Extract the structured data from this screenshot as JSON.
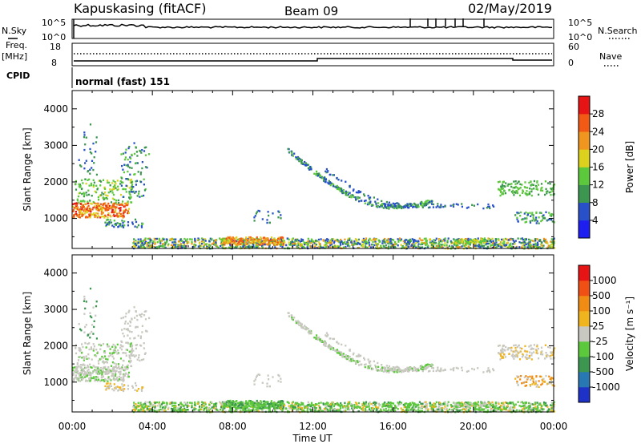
{
  "header": {
    "station": "Kapuskasing (fitACF)",
    "beam": "Beam 09",
    "date": "02/May/2019"
  },
  "panels": {
    "nsky_label": "N.Sky",
    "nsearch_label": "N.Search",
    "noise_ticks": [
      "10^5",
      "10^0"
    ],
    "freq_label": "Freq.",
    "freq_unit": "[MHz]",
    "freq_ticks": [
      "18",
      "8"
    ],
    "nave_label": "Nave",
    "nave_ticks": [
      "60",
      "0"
    ],
    "cpid_label": "CPID",
    "cpid_value": "normal (fast) 151"
  },
  "chart_data": [
    {
      "type": "heatmap",
      "title": "",
      "xlabel": "",
      "ylabel": "Slant Range [km]",
      "x_ticks": [
        "00:00",
        "04:00",
        "08:00",
        "12:00",
        "16:00",
        "20:00",
        "00:00"
      ],
      "y_ticks": [
        "1000",
        "2000",
        "3000",
        "4000"
      ],
      "ylim": [
        180,
        4500
      ],
      "colorbar": {
        "label": "Power [dB]",
        "ticks": [
          "4",
          "8",
          "12",
          "16",
          "20",
          "24",
          "28"
        ],
        "colors": [
          "#1e1ef0",
          "#2850c8",
          "#3c9650",
          "#5cc83c",
          "#dcd21e",
          "#f0961e",
          "#f05a14",
          "#e61414"
        ]
      }
    },
    {
      "type": "heatmap",
      "title": "",
      "xlabel": "Time UT",
      "ylabel": "Slant Range [km]",
      "x_ticks": [
        "00:00",
        "04:00",
        "08:00",
        "12:00",
        "16:00",
        "20:00",
        "00:00"
      ],
      "y_ticks": [
        "1000",
        "2000",
        "3000",
        "4000"
      ],
      "ylim": [
        180,
        4500
      ],
      "colorbar": {
        "label": "Velocity [m s⁻¹]",
        "ticks": [
          "1000",
          "500",
          "100",
          "25",
          "-25",
          "-100",
          "-500",
          "-1000"
        ],
        "colors": [
          "#1e32c8",
          "#2878b4",
          "#3c9650",
          "#5cc83c",
          "#c8c8c0",
          "#f0b41e",
          "#f08c14",
          "#f05014",
          "#e61414"
        ]
      }
    }
  ]
}
